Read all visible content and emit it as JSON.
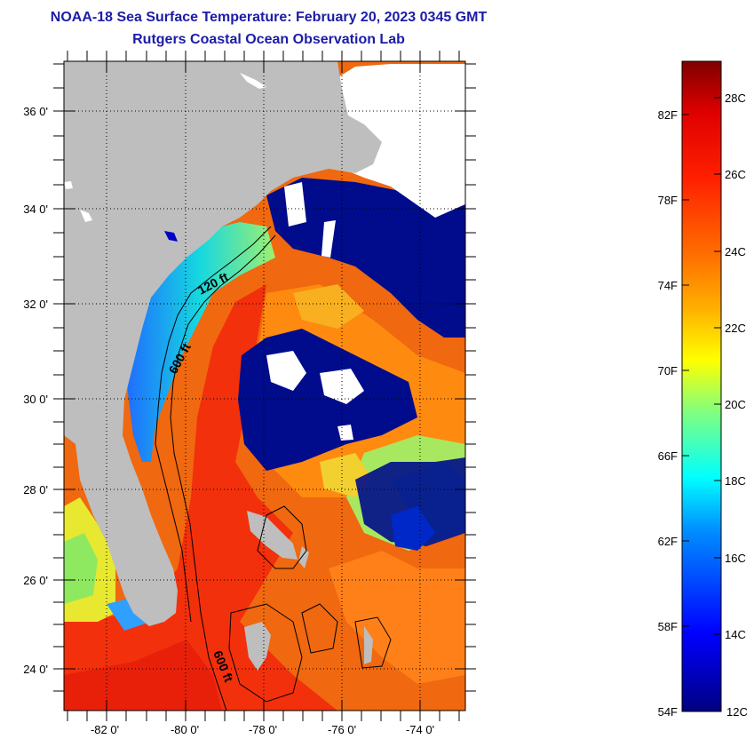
{
  "header": {
    "title": "NOAA-18 Sea Surface Temperature:  February 20, 2023 0345 GMT",
    "subtitle": "Rutgers Coastal Ocean Observation Lab"
  },
  "map": {
    "lat_labels": [
      "36 0'",
      "34 0'",
      "32 0'",
      "30 0'",
      "28 0'",
      "26 0'",
      "24 0'"
    ],
    "lon_labels": [
      "-82 0'",
      "-80 0'",
      "-78 0'",
      "-76 0'",
      "-74 0'"
    ],
    "isobath_labels": [
      "120 ft",
      "600 ft",
      "600 ft"
    ]
  },
  "colorbar": {
    "f_labels": [
      "82F",
      "78F",
      "74F",
      "70F",
      "66F",
      "62F",
      "58F",
      "54F"
    ],
    "c_labels": [
      "28C",
      "26C",
      "24C",
      "22C",
      "20C",
      "18C",
      "16C",
      "14C",
      "12C"
    ]
  },
  "colors": {
    "land": "#bebebe",
    "cloud": "#000c8c",
    "title": "#1c1ca8"
  }
}
